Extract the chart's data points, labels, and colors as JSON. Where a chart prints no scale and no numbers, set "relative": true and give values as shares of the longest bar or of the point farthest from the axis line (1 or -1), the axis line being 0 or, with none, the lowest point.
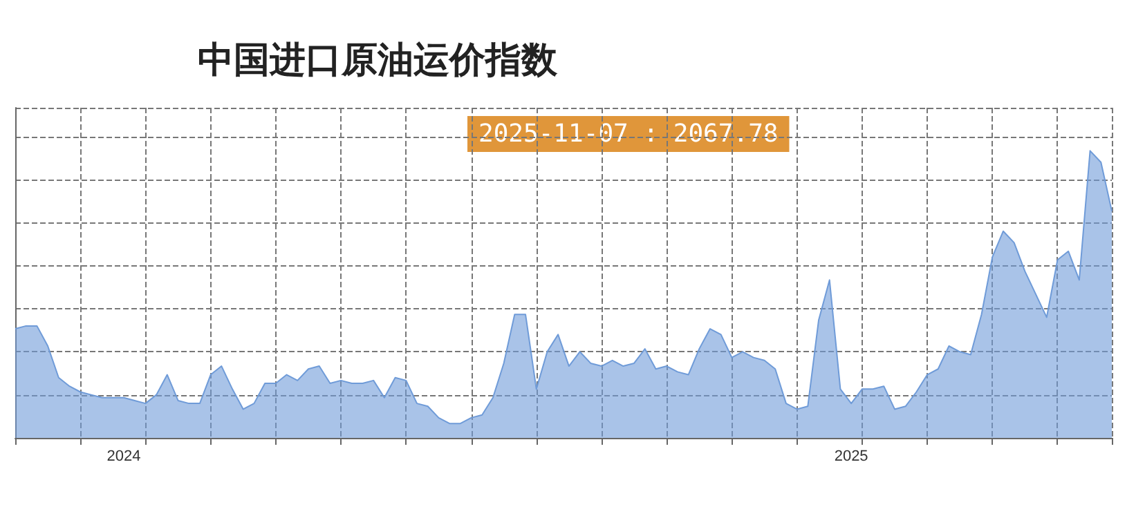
{
  "chart_data": {
    "type": "area",
    "title": "中国进口原油运价指数",
    "relative": true,
    "grid": true,
    "marker": "none",
    "annotations": [
      "2025-11-07 : 2067.78"
    ],
    "categories": [
      null,
      null,
      null,
      null,
      null,
      null,
      null,
      null,
      null,
      null,
      "2024",
      null,
      null,
      null,
      null,
      null,
      null,
      null,
      null,
      null,
      null,
      null,
      null,
      null,
      null,
      null,
      null,
      null,
      null,
      null,
      null,
      null,
      null,
      null,
      null,
      null,
      null,
      null,
      null,
      null,
      null,
      null,
      null,
      null,
      null,
      null,
      null,
      null,
      null,
      null,
      null,
      null,
      null,
      null,
      null,
      null,
      null,
      null,
      null,
      null,
      null,
      null,
      null,
      null,
      null,
      null,
      null,
      null,
      null,
      null,
      null,
      null,
      null,
      null,
      null,
      null,
      null,
      "2025",
      null,
      null,
      null,
      null,
      null,
      null,
      null,
      null,
      null,
      null,
      null,
      null,
      null,
      null,
      null,
      null,
      null,
      null,
      null,
      null,
      null,
      null,
      null,
      null
    ],
    "series": [
      {
        "color": "#6f9bd8",
        "values": [
          0.38,
          0.39,
          0.39,
          0.32,
          0.21,
          0.18,
          0.16,
          0.15,
          0.14,
          0.14,
          0.14,
          0.13,
          0.12,
          0.15,
          0.22,
          0.13,
          0.12,
          0.12,
          0.22,
          0.25,
          0.17,
          0.1,
          0.12,
          0.19,
          0.19,
          0.22,
          0.2,
          0.24,
          0.25,
          0.19,
          0.2,
          0.19,
          0.19,
          0.2,
          0.14,
          0.21,
          0.2,
          0.12,
          0.11,
          0.07,
          0.05,
          0.05,
          0.07,
          0.08,
          0.14,
          0.26,
          0.43,
          0.43,
          0.17,
          0.3,
          0.36,
          0.25,
          0.3,
          0.26,
          0.25,
          0.27,
          0.25,
          0.26,
          0.31,
          0.24,
          0.25,
          0.23,
          0.22,
          0.31,
          0.38,
          0.36,
          0.28,
          0.3,
          0.28,
          0.27,
          0.24,
          0.12,
          0.1,
          0.11,
          0.41,
          0.55,
          0.17,
          0.12,
          0.17,
          0.17,
          0.18,
          0.1,
          0.11,
          0.16,
          0.22,
          0.24,
          0.32,
          0.3,
          0.29,
          0.43,
          0.63,
          0.72,
          0.68,
          0.58,
          0.5,
          0.42,
          0.62,
          0.65,
          0.55,
          1,
          0.96,
          0.79
        ]
      }
    ]
  }
}
